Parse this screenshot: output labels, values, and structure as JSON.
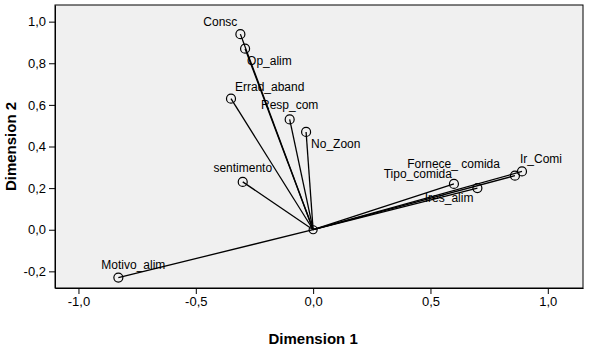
{
  "chart_data": {
    "type": "vector",
    "xlabel": "Dimension 1",
    "ylabel": "Dimension 2",
    "labels": [
      "Consc",
      "Op_alim",
      "Errad_aband",
      "Resp_com",
      "No_Zoon",
      "sentimento",
      "Fornece_ comida",
      "Ir_Comi",
      "Tipo_comida",
      "Ires_alim",
      "Motivo_alim"
    ],
    "x": [
      -0.31,
      -0.29,
      -0.35,
      -0.1,
      -0.03,
      -0.3,
      0.86,
      0.89,
      0.6,
      0.7,
      -0.83
    ],
    "y": [
      0.94,
      0.87,
      0.63,
      0.53,
      0.47,
      0.23,
      0.26,
      0.28,
      0.22,
      0.2,
      -0.23
    ],
    "xlim": [
      -1.1,
      1.15
    ],
    "ylim": [
      -0.28,
      1.08
    ],
    "xticks": [
      {
        "value": -1,
        "label": "-1,0"
      },
      {
        "value": -0.5,
        "label": "-0,5"
      },
      {
        "value": 0,
        "label": "0,0"
      },
      {
        "value": 0.5,
        "label": "0,5"
      },
      {
        "value": 1,
        "label": "1,0"
      }
    ],
    "yticks": [
      {
        "value": -0.2,
        "label": "-0,2"
      },
      {
        "value": 0,
        "label": "0,0"
      },
      {
        "value": 0.2,
        "label": "0,2"
      },
      {
        "value": 0.4,
        "label": "0,4"
      },
      {
        "value": 0.6,
        "label": "0,6"
      },
      {
        "value": 0.8,
        "label": "0,8"
      },
      {
        "value": 1,
        "label": "1,0"
      }
    ],
    "marker": "circle"
  }
}
